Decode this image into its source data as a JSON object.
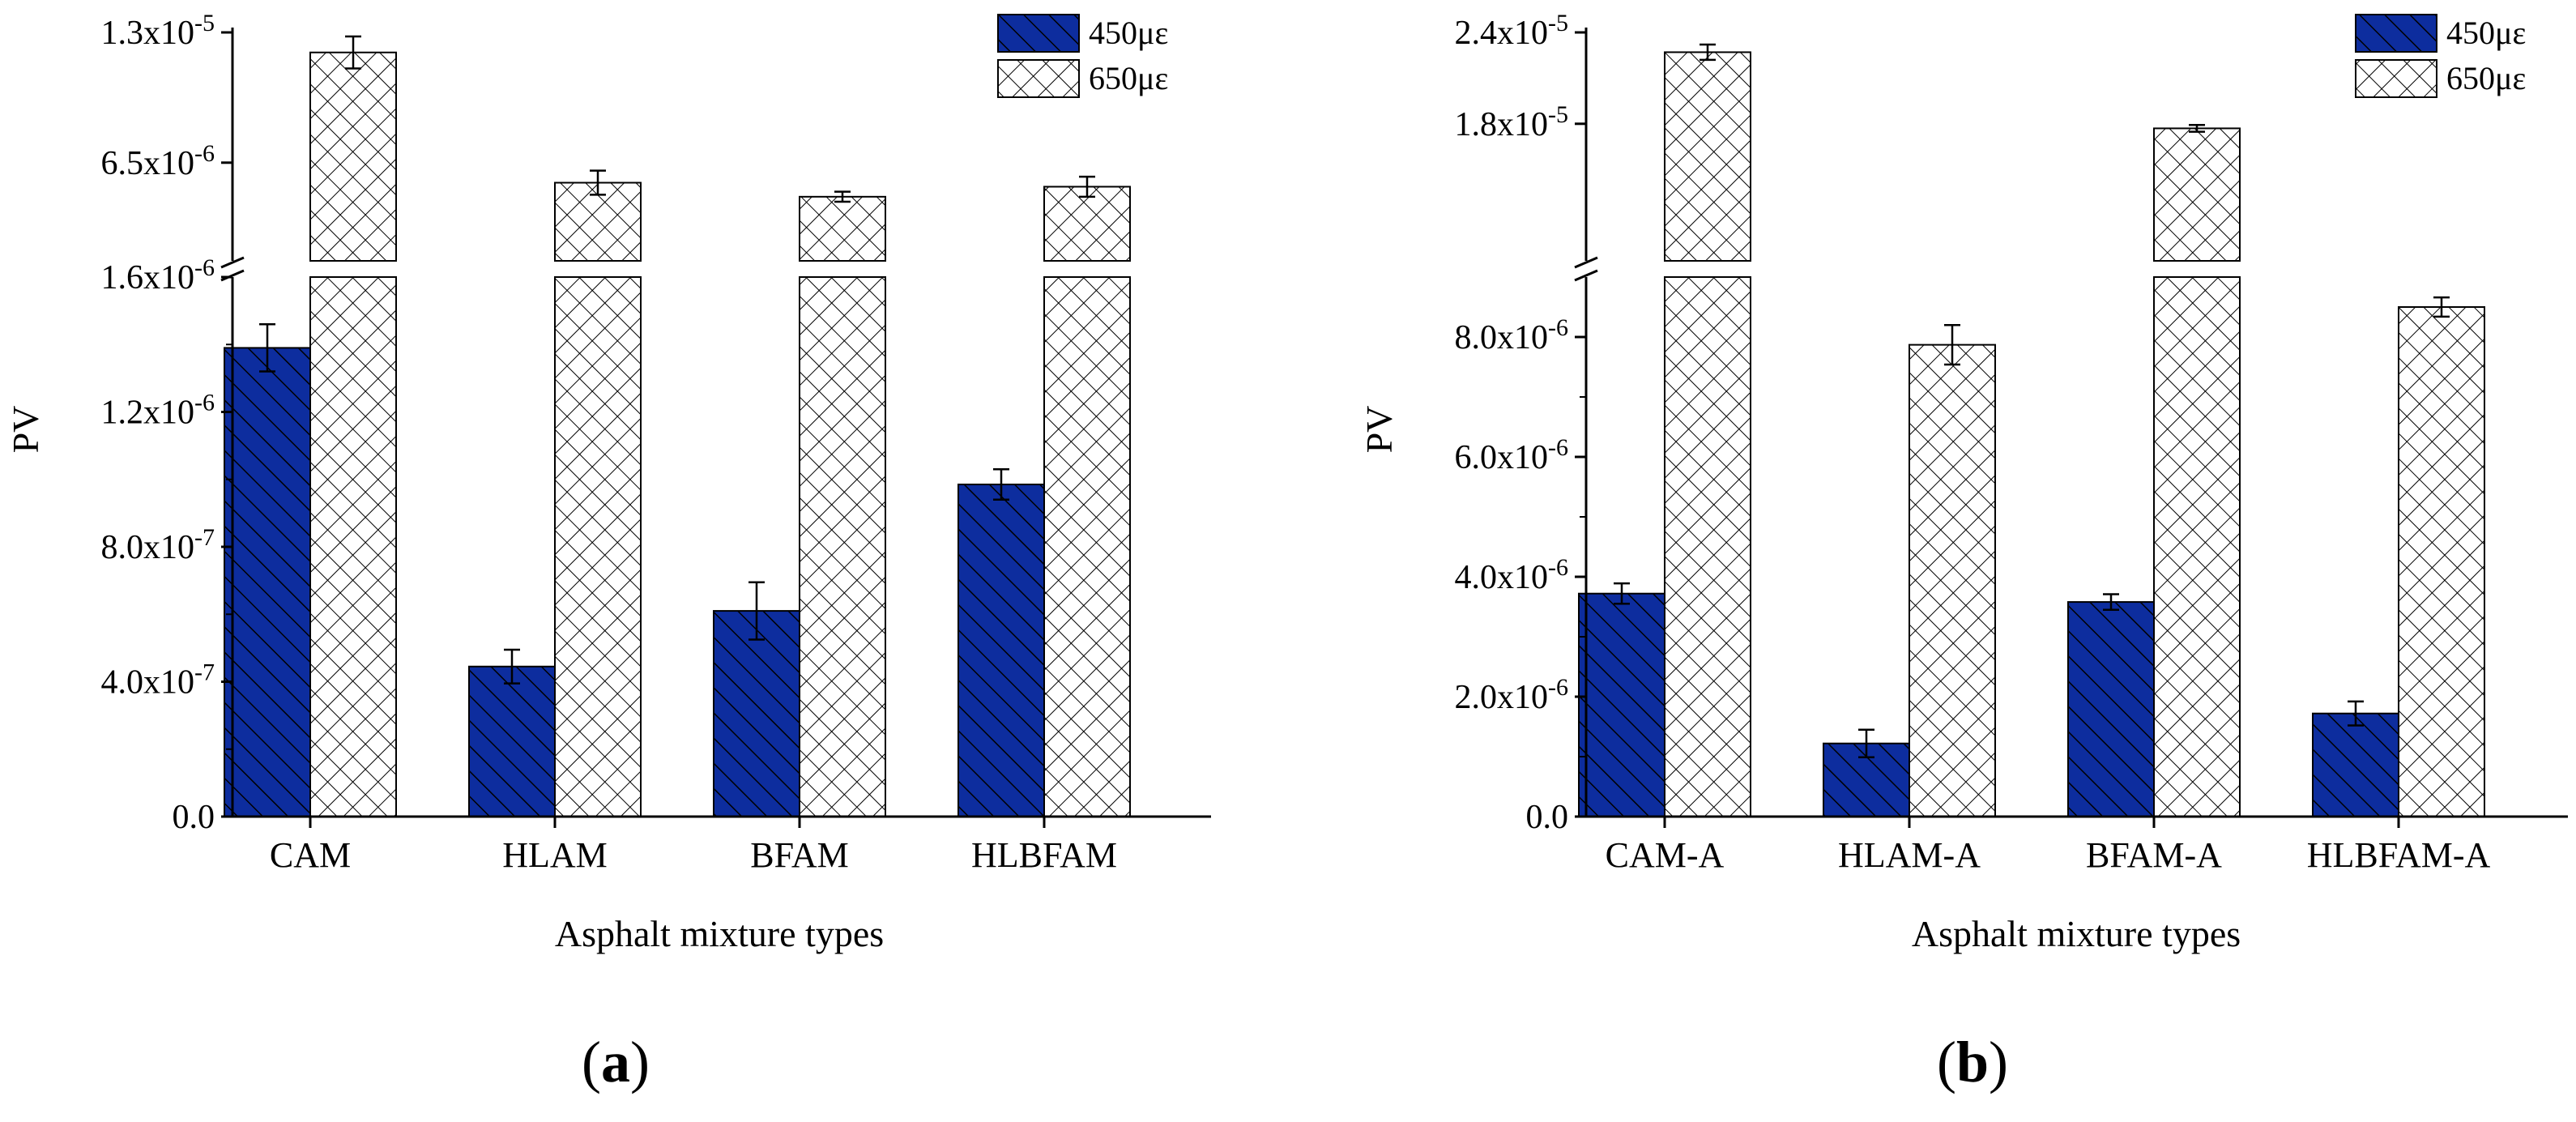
{
  "figure": {
    "bar_color": "#0d2d9e",
    "hatch_fill": "#ffffff",
    "stroke_color": "#000000"
  },
  "chart_data": [
    {
      "type": "bar",
      "panel_label": "(a)",
      "xlabel": "Asphalt mixture types",
      "ylabel": "PV",
      "categories": [
        "CAM",
        "HLAM",
        "BFAM",
        "HLBFAM"
      ],
      "series": [
        {
          "name": "450με",
          "pattern": "diagonal-hatch",
          "values": [
            1.39e-06,
            4.45e-07,
            6.1e-07,
            9.85e-07
          ],
          "errors": [
            7e-08,
            5e-08,
            8.5e-08,
            4.5e-08
          ]
        },
        {
          "name": "650με",
          "pattern": "crosshatch",
          "values": [
            1.2e-05,
            5.5e-06,
            4.8e-06,
            5.3e-06
          ],
          "errors": [
            8e-07,
            6e-07,
            2.5e-07,
            5e-07
          ]
        }
      ],
      "y_axis_broken": true,
      "lower_ylim": [
        0,
        1.6e-06
      ],
      "upper_ylim": [
        1.6e-06,
        1.3e-05
      ],
      "lower_ticks": [
        0,
        4e-07,
        8e-07,
        1.2e-06,
        1.6e-06
      ],
      "lower_tick_labels": [
        "0.0",
        "4.0x10-7",
        "8.0x10-7",
        "1.2x10-6",
        "1.6x10-6"
      ],
      "upper_ticks": [
        6.5e-06,
        1.3e-05
      ],
      "upper_tick_labels": [
        "6.5x10-6",
        "1.3x10-5"
      ],
      "legend_position": "top-right"
    },
    {
      "type": "bar",
      "panel_label": "(b)",
      "xlabel": "Asphalt mixture types",
      "ylabel": "PV",
      "categories": [
        "CAM-A",
        "HLAM-A",
        "BFAM-A",
        "HLBFAM-A"
      ],
      "series": [
        {
          "name": "450με",
          "pattern": "diagonal-hatch",
          "values": [
            3.72e-06,
            1.22e-06,
            3.58e-06,
            1.72e-06
          ],
          "errors": [
            1.7e-07,
            2.3e-07,
            1.3e-07,
            2e-07
          ]
        },
        {
          "name": "650με",
          "pattern": "crosshatch",
          "values": [
            2.27e-05,
            7.87e-06,
            1.77e-05,
            8.5e-06
          ],
          "errors": [
            5e-07,
            3.3e-07,
            2.2e-07,
            1.6e-07
          ]
        }
      ],
      "y_axis_broken": true,
      "lower_ylim": [
        0,
        9e-06
      ],
      "upper_ylim": [
        9e-06,
        2.4e-05
      ],
      "lower_ticks": [
        0,
        2e-06,
        4e-06,
        6e-06,
        8e-06
      ],
      "lower_tick_labels": [
        "0.0",
        "2.0x10-6",
        "4.0x10-6",
        "6.0x10-6",
        "8.0x10-6"
      ],
      "upper_ticks": [
        1.8e-05,
        2.4e-05
      ],
      "upper_tick_labels": [
        "1.8x10-5",
        "2.4x10-5"
      ],
      "legend_position": "top-right"
    }
  ]
}
